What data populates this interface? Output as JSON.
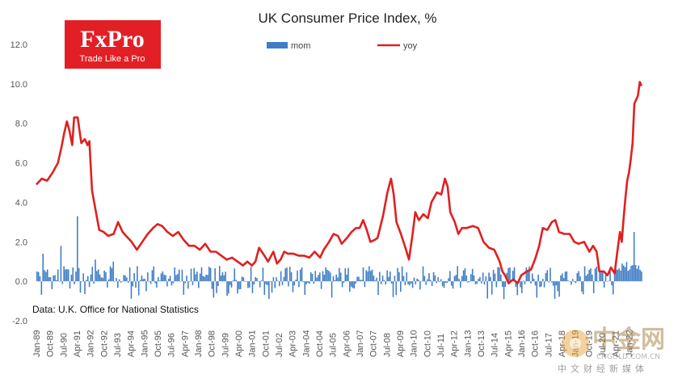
{
  "chart_data": {
    "type": "bar+line",
    "title": "UK Consumer  Price Index, %",
    "ylim": [
      -2.0,
      12.0
    ],
    "yticks": [
      12.0,
      10.0,
      8.0,
      6.0,
      4.0,
      2.0,
      0.0,
      -2.0
    ],
    "ytick_labels": [
      "12.0",
      "10.0",
      "8.0",
      "6.0",
      "4.0",
      "2.0",
      "0.0",
      "-2.0"
    ],
    "x_start": "Jan-89",
    "x_end": "Jul-22",
    "x_tick_labels": [
      "Jan-89",
      "Oct-89",
      "Jul-90",
      "Apr-91",
      "Jan-92",
      "Oct-92",
      "Jul-93",
      "Apr-94",
      "Jan-95",
      "Oct-95",
      "Jul-96",
      "Apr-97",
      "Jan-98",
      "Oct-98",
      "Jul-99",
      "Apr-00",
      "Jan-01",
      "Oct-01",
      "Jul-02",
      "Apr-03",
      "Jan-04",
      "Oct-04",
      "Jul-05",
      "Apr-06",
      "Jan-07",
      "Oct-07",
      "Jul-08",
      "Apr-09",
      "Jan-10",
      "Oct-10",
      "Jul-11",
      "Apr-12",
      "Jan-13",
      "Oct-13",
      "Jul-14",
      "Apr-15",
      "Jan-16",
      "Oct-16",
      "Jul-17",
      "Apr-18",
      "Jan-19",
      "Oct-19",
      "Jul-20",
      "Apr-21",
      "Jan-22"
    ],
    "series": [
      {
        "name": "mom",
        "type": "bar",
        "color": "#3f7dc4",
        "description": "monthly % change, mostly between -0.8 and 1.0, spikes 3.3 (Apr-91) and 2.5 (Apr-22)",
        "anchors": [
          [
            1989.0,
            0.5
          ],
          [
            1989.3,
            1.4
          ],
          [
            1989.6,
            0.6
          ],
          [
            1990.3,
            1.8
          ],
          [
            1990.6,
            0.6
          ],
          [
            1991.25,
            3.3
          ],
          [
            1991.6,
            0.4
          ],
          [
            1992.25,
            1.1
          ],
          [
            1992.6,
            0.2
          ],
          [
            1993.25,
            1.0
          ],
          [
            1993.6,
            0.1
          ],
          [
            1999.0,
            -0.6
          ],
          [
            2001.0,
            -0.6
          ],
          [
            2008.8,
            -0.8
          ],
          [
            2009.0,
            -0.7
          ],
          [
            2015.0,
            -0.9
          ],
          [
            2016.0,
            -0.6
          ],
          [
            2018.0,
            -0.5
          ],
          [
            2020.0,
            -0.6
          ],
          [
            2021.0,
            -0.2
          ],
          [
            2021.25,
            0.6
          ],
          [
            2021.6,
            0.9
          ],
          [
            2022.0,
            0.6
          ],
          [
            2022.25,
            2.5
          ],
          [
            2022.5,
            0.8
          ],
          [
            2022.7,
            0.5
          ]
        ]
      },
      {
        "name": "yoy",
        "type": "line",
        "color": "#e02020",
        "points": [
          [
            1989.0,
            4.9
          ],
          [
            1989.3,
            5.2
          ],
          [
            1989.6,
            5.1
          ],
          [
            1989.9,
            5.5
          ],
          [
            1990.2,
            6.0
          ],
          [
            1990.4,
            6.8
          ],
          [
            1990.55,
            7.5
          ],
          [
            1990.7,
            8.1
          ],
          [
            1990.85,
            7.6
          ],
          [
            1991.0,
            6.9
          ],
          [
            1991.1,
            8.3
          ],
          [
            1991.3,
            8.3
          ],
          [
            1991.5,
            7.0
          ],
          [
            1991.7,
            7.2
          ],
          [
            1991.85,
            6.9
          ],
          [
            1991.95,
            7.1
          ],
          [
            1992.1,
            4.6
          ],
          [
            1992.3,
            3.6
          ],
          [
            1992.5,
            2.6
          ],
          [
            1992.75,
            2.5
          ],
          [
            1993.0,
            2.3
          ],
          [
            1993.3,
            2.4
          ],
          [
            1993.55,
            3.0
          ],
          [
            1993.8,
            2.5
          ],
          [
            1994.0,
            2.3
          ],
          [
            1994.3,
            2.0
          ],
          [
            1994.6,
            1.6
          ],
          [
            1994.9,
            2.0
          ],
          [
            1995.2,
            2.4
          ],
          [
            1995.5,
            2.7
          ],
          [
            1995.75,
            2.9
          ],
          [
            1996.0,
            2.8
          ],
          [
            1996.3,
            2.5
          ],
          [
            1996.6,
            2.3
          ],
          [
            1996.9,
            2.5
          ],
          [
            1997.2,
            2.1
          ],
          [
            1997.5,
            1.8
          ],
          [
            1997.8,
            1.8
          ],
          [
            1998.1,
            1.6
          ],
          [
            1998.4,
            1.9
          ],
          [
            1998.7,
            1.5
          ],
          [
            1999.0,
            1.5
          ],
          [
            1999.3,
            1.3
          ],
          [
            1999.6,
            1.1
          ],
          [
            1999.9,
            1.2
          ],
          [
            2000.2,
            1.0
          ],
          [
            2000.5,
            0.8
          ],
          [
            2000.75,
            1.0
          ],
          [
            2001.0,
            0.8
          ],
          [
            2001.2,
            1.0
          ],
          [
            2001.4,
            1.7
          ],
          [
            2001.7,
            1.3
          ],
          [
            2001.9,
            1.0
          ],
          [
            2002.2,
            1.5
          ],
          [
            2002.4,
            0.9
          ],
          [
            2002.6,
            1.1
          ],
          [
            2002.8,
            1.5
          ],
          [
            2003.0,
            1.4
          ],
          [
            2003.3,
            1.4
          ],
          [
            2003.6,
            1.3
          ],
          [
            2003.9,
            1.3
          ],
          [
            2004.2,
            1.2
          ],
          [
            2004.5,
            1.5
          ],
          [
            2004.8,
            1.2
          ],
          [
            2005.0,
            1.6
          ],
          [
            2005.3,
            2.0
          ],
          [
            2005.55,
            2.4
          ],
          [
            2005.8,
            2.3
          ],
          [
            2006.0,
            1.9
          ],
          [
            2006.3,
            2.2
          ],
          [
            2006.55,
            2.5
          ],
          [
            2006.8,
            2.7
          ],
          [
            2007.0,
            2.7
          ],
          [
            2007.2,
            3.1
          ],
          [
            2007.4,
            2.6
          ],
          [
            2007.6,
            2.0
          ],
          [
            2007.85,
            2.1
          ],
          [
            2008.0,
            2.2
          ],
          [
            2008.3,
            3.3
          ],
          [
            2008.55,
            4.5
          ],
          [
            2008.75,
            5.2
          ],
          [
            2008.9,
            4.4
          ],
          [
            2009.05,
            3.0
          ],
          [
            2009.3,
            2.4
          ],
          [
            2009.55,
            1.7
          ],
          [
            2009.75,
            1.1
          ],
          [
            2009.95,
            2.4
          ],
          [
            2010.1,
            3.5
          ],
          [
            2010.3,
            3.1
          ],
          [
            2010.55,
            3.4
          ],
          [
            2010.8,
            3.2
          ],
          [
            2011.0,
            4.0
          ],
          [
            2011.3,
            4.5
          ],
          [
            2011.55,
            4.4
          ],
          [
            2011.75,
            5.2
          ],
          [
            2011.9,
            4.8
          ],
          [
            2012.05,
            3.5
          ],
          [
            2012.3,
            3.0
          ],
          [
            2012.5,
            2.4
          ],
          [
            2012.7,
            2.7
          ],
          [
            2012.95,
            2.7
          ],
          [
            2013.3,
            2.8
          ],
          [
            2013.6,
            2.7
          ],
          [
            2013.9,
            2.0
          ],
          [
            2014.2,
            1.7
          ],
          [
            2014.5,
            1.6
          ],
          [
            2014.8,
            1.0
          ],
          [
            2014.95,
            0.5
          ],
          [
            2015.1,
            0.3
          ],
          [
            2015.3,
            -0.1
          ],
          [
            2015.55,
            0.1
          ],
          [
            2015.8,
            -0.1
          ],
          [
            2016.0,
            0.3
          ],
          [
            2016.3,
            0.5
          ],
          [
            2016.55,
            0.6
          ],
          [
            2016.8,
            1.2
          ],
          [
            2017.0,
            1.8
          ],
          [
            2017.2,
            2.7
          ],
          [
            2017.45,
            2.6
          ],
          [
            2017.7,
            3.0
          ],
          [
            2017.9,
            3.1
          ],
          [
            2018.1,
            2.5
          ],
          [
            2018.4,
            2.4
          ],
          [
            2018.7,
            2.4
          ],
          [
            2018.95,
            2.0
          ],
          [
            2019.2,
            1.9
          ],
          [
            2019.5,
            2.0
          ],
          [
            2019.8,
            1.5
          ],
          [
            2020.0,
            1.8
          ],
          [
            2020.2,
            1.5
          ],
          [
            2020.35,
            0.5
          ],
          [
            2020.6,
            0.5
          ],
          [
            2020.8,
            0.3
          ],
          [
            2021.0,
            0.7
          ],
          [
            2021.2,
            0.4
          ],
          [
            2021.35,
            1.5
          ],
          [
            2021.5,
            2.5
          ],
          [
            2021.6,
            2.0
          ],
          [
            2021.7,
            3.2
          ],
          [
            2021.8,
            4.2
          ],
          [
            2021.9,
            5.1
          ],
          [
            2022.0,
            5.5
          ],
          [
            2022.1,
            6.2
          ],
          [
            2022.2,
            7.0
          ],
          [
            2022.3,
            9.0
          ],
          [
            2022.5,
            9.4
          ],
          [
            2022.6,
            10.1
          ],
          [
            2022.7,
            9.9
          ]
        ]
      }
    ],
    "legend": [
      "mom",
      "yoy"
    ],
    "legend_position": "top-center",
    "source_note": "Data: U.K. Office for National Statistics"
  },
  "logo": {
    "brand": "FxPro",
    "tagline": "Trade Like a Pro",
    "color": "#e31f26"
  },
  "watermark": {
    "main": "中金网",
    "url": "CNGOLD.COM.CN",
    "sub": "中文财经新媒体"
  }
}
